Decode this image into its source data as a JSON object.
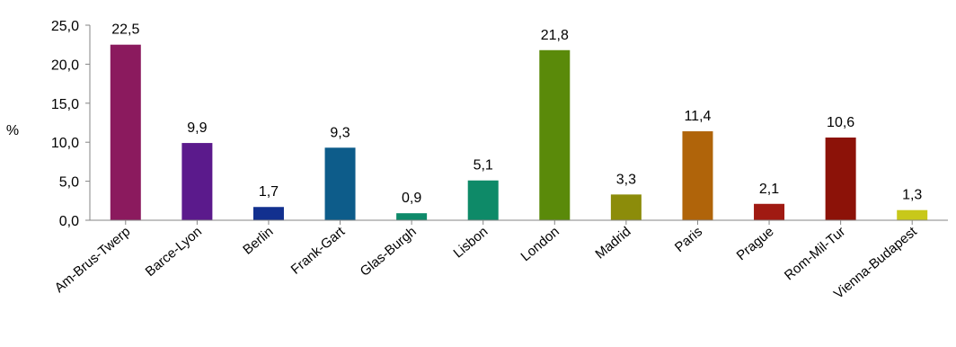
{
  "chart_data": {
    "type": "bar",
    "title": "",
    "xlabel": "",
    "ylabel": "%",
    "ylim": [
      0,
      25
    ],
    "yticks": [
      "0,0",
      "5,0",
      "10,0",
      "15,0",
      "20,0",
      "25,0"
    ],
    "grid": false,
    "legend": "none",
    "categories": [
      "Am-Brus-Twerp",
      "Barce-Lyon",
      "Berlin",
      "Frank-Gart",
      "Glas-Burgh",
      "Lisbon",
      "London",
      "Madrid",
      "Paris",
      "Prague",
      "Rom-Mil-Tur",
      "Vienna-Budapest"
    ],
    "values": [
      22.5,
      9.9,
      1.7,
      9.3,
      0.9,
      5.1,
      21.8,
      3.3,
      11.4,
      2.1,
      10.6,
      1.3
    ],
    "value_labels": [
      "22,5",
      "9,9",
      "1,7",
      "9,3",
      "0,9",
      "5,1",
      "21,8",
      "3,3",
      "11,4",
      "2,1",
      "10,6",
      "1,3"
    ],
    "colors": [
      "#8B1A5E",
      "#5B1A8C",
      "#12308F",
      "#0D5C8A",
      "#0E8A6A",
      "#0E8A68",
      "#5A8A0A",
      "#8C8C0A",
      "#B0640A",
      "#A01A12",
      "#8C1208",
      "#C8C81A"
    ]
  }
}
